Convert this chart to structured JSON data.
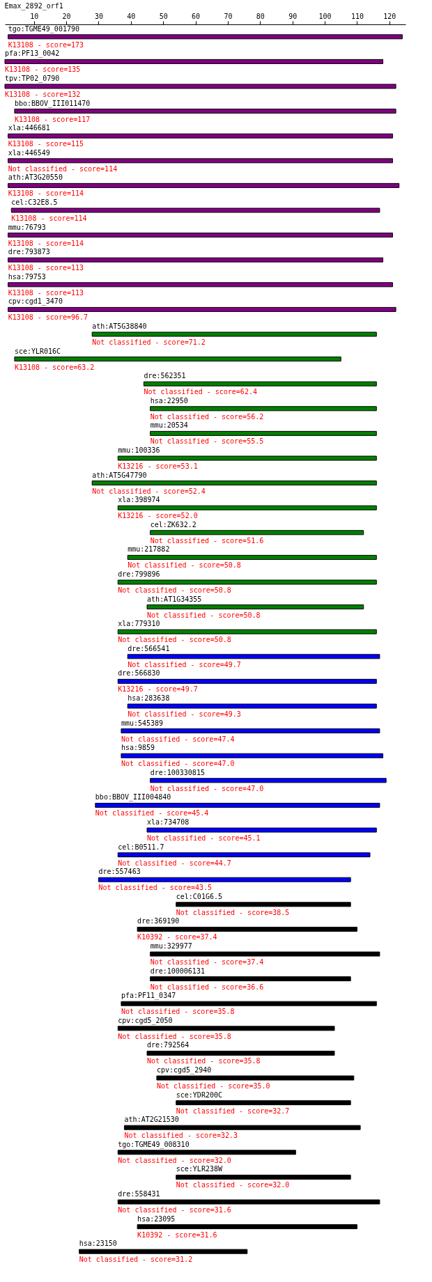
{
  "chart_data": {
    "type": "bar",
    "orientation": "horizontal",
    "title": "Emax_2892_orf1",
    "categories": [
      "tgo:TGME49_001790",
      "pfa:PF13_0042",
      "tpv:TP02_0790",
      "bbo:BBOV_III011470",
      "xla:446681",
      "xla:446549",
      "ath:AT3G20550",
      "cel:C32E8.5",
      "mmu:76793",
      "dre:793873",
      "hsa:79753",
      "cpv:cgd1_3470",
      "ath:AT5G38840",
      "sce:YLR016C",
      "dre:562351",
      "hsa:22950",
      "mmu:20534",
      "mmu:100336",
      "ath:AT5G47790",
      "xla:398974",
      "cel:ZK632.2",
      "mmu:217882",
      "dre:799896",
      "ath:AT1G34355",
      "xla:779310",
      "dre:566541",
      "dre:566830",
      "hsa:283638",
      "mmu:545389",
      "hsa:9859",
      "dre:100330815",
      "bbo:BBOV_III004840",
      "xla:734708",
      "cel:B0511.7",
      "dre:557463",
      "cel:C01G6.5",
      "dre:369190",
      "mmu:329977",
      "dre:100006131",
      "pfa:PF11_0347",
      "cpv:cgd5_2050",
      "dre:792564",
      "cpv:cgd5_2940",
      "sce:YDR200C",
      "ath:AT2G21530",
      "tgo:TGME49_008310",
      "sce:YLR238W",
      "dre:558431",
      "hsa:23095",
      "hsa:23150"
    ],
    "base": [
      2,
      1,
      1,
      4,
      2,
      2,
      2,
      3,
      2,
      2,
      2,
      2,
      28,
      4,
      44,
      46,
      46,
      36,
      28,
      36,
      46,
      39,
      36,
      45,
      36,
      39,
      36,
      39,
      37,
      37,
      46,
      29,
      45,
      36,
      30,
      54,
      42,
      46,
      46,
      37,
      36,
      45,
      48,
      54,
      38,
      36,
      54,
      36,
      42,
      24
    ],
    "values": [
      122,
      117,
      121,
      118,
      119,
      119,
      121,
      114,
      119,
      116,
      119,
      120,
      88,
      101,
      72,
      70,
      70,
      80,
      88,
      80,
      66,
      77,
      80,
      67,
      80,
      78,
      80,
      77,
      80,
      81,
      73,
      88,
      71,
      78,
      78,
      54,
      68,
      71,
      62,
      79,
      67,
      58,
      61,
      54,
      73,
      55,
      54,
      81,
      68,
      52
    ],
    "colors": [
      "#800080",
      "#800080",
      "#800080",
      "#800080",
      "#800080",
      "#800080",
      "#800080",
      "#800080",
      "#800080",
      "#800080",
      "#800080",
      "#800080",
      "#008000",
      "#008000",
      "#008000",
      "#008000",
      "#008000",
      "#008000",
      "#008000",
      "#008000",
      "#008000",
      "#008000",
      "#008000",
      "#008000",
      "#008000",
      "#0000ff",
      "#0000ff",
      "#0000ff",
      "#0000ff",
      "#0000ff",
      "#0000ff",
      "#0000ff",
      "#0000ff",
      "#0000ff",
      "#0000ff",
      "#000000",
      "#000000",
      "#000000",
      "#000000",
      "#000000",
      "#000000",
      "#000000",
      "#000000",
      "#000000",
      "#000000",
      "#000000",
      "#000000",
      "#000000",
      "#000000",
      "#000000"
    ],
    "xlim": [
      1,
      125
    ],
    "xticks": [
      10,
      20,
      30,
      40,
      50,
      60,
      70,
      80,
      90,
      100,
      110,
      120
    ],
    "tick_labels": "x",
    "grid": false,
    "annotations": [
      {
        "text": "K13108 - score=173",
        "x": 2,
        "y": "tgo:TGME49_001790"
      },
      {
        "text": "K13108 - score=135",
        "x": 1,
        "y": "pfa:PF13_0042"
      },
      {
        "text": "K13108 - score=132",
        "x": 1,
        "y": "tpv:TP02_0790"
      },
      {
        "text": "K13108 - score=117",
        "x": 4,
        "y": "bbo:BBOV_III011470"
      },
      {
        "text": "K13108 - score=115",
        "x": 2,
        "y": "xla:446681"
      },
      {
        "text": "Not classified - score=114",
        "x": 2,
        "y": "xla:446549"
      },
      {
        "text": "K13108 - score=114",
        "x": 2,
        "y": "ath:AT3G20550"
      },
      {
        "text": "K13108 - score=114",
        "x": 3,
        "y": "cel:C32E8.5"
      },
      {
        "text": "K13108 - score=114",
        "x": 2,
        "y": "mmu:76793"
      },
      {
        "text": "K13108 - score=113",
        "x": 2,
        "y": "dre:793873"
      },
      {
        "text": "K13108 - score=113",
        "x": 2,
        "y": "hsa:79753"
      },
      {
        "text": "K13108 - score=96.7",
        "x": 2,
        "y": "cpv:cgd1_3470"
      },
      {
        "text": "Not classified - score=71.2",
        "x": 28,
        "y": "ath:AT5G38840"
      },
      {
        "text": "K13108 - score=63.2",
        "x": 4,
        "y": "sce:YLR016C"
      },
      {
        "text": "Not classified - score=62.4",
        "x": 44,
        "y": "dre:562351"
      },
      {
        "text": "Not classified - score=56.2",
        "x": 46,
        "y": "hsa:22950"
      },
      {
        "text": "Not classified - score=55.5",
        "x": 46,
        "y": "mmu:20534"
      },
      {
        "text": "K13216 - score=53.1",
        "x": 36,
        "y": "mmu:100336"
      },
      {
        "text": "Not classified - score=52.4",
        "x": 28,
        "y": "ath:AT5G47790"
      },
      {
        "text": "K13216 - score=52.0",
        "x": 36,
        "y": "xla:398974"
      },
      {
        "text": "Not classified - score=51.6",
        "x": 46,
        "y": "cel:ZK632.2"
      },
      {
        "text": "Not classified - score=50.8",
        "x": 39,
        "y": "mmu:217882"
      },
      {
        "text": "Not classified - score=50.8",
        "x": 36,
        "y": "dre:799896"
      },
      {
        "text": "Not classified - score=50.8",
        "x": 45,
        "y": "ath:AT1G34355"
      },
      {
        "text": "Not classified - score=50.8",
        "x": 36,
        "y": "xla:779310"
      },
      {
        "text": "Not classified - score=49.7",
        "x": 39,
        "y": "dre:566541"
      },
      {
        "text": "K13216 - score=49.7",
        "x": 36,
        "y": "dre:566830"
      },
      {
        "text": "Not classified - score=49.3",
        "x": 39,
        "y": "hsa:283638"
      },
      {
        "text": "Not classified - score=47.4",
        "x": 37,
        "y": "mmu:545389"
      },
      {
        "text": "Not classified - score=47.0",
        "x": 37,
        "y": "hsa:9859"
      },
      {
        "text": "Not classified - score=47.0",
        "x": 46,
        "y": "dre:100330815"
      },
      {
        "text": "Not classified - score=45.4",
        "x": 29,
        "y": "bbo:BBOV_III004840"
      },
      {
        "text": "Not classified - score=45.1",
        "x": 45,
        "y": "xla:734708"
      },
      {
        "text": "Not classified - score=44.7",
        "x": 36,
        "y": "cel:B0511.7"
      },
      {
        "text": "Not classified - score=43.5",
        "x": 30,
        "y": "dre:557463"
      },
      {
        "text": "Not classified - score=38.5",
        "x": 54,
        "y": "cel:C01G6.5"
      },
      {
        "text": "K10392 - score=37.4",
        "x": 42,
        "y": "dre:369190"
      },
      {
        "text": "Not classified - score=37.4",
        "x": 46,
        "y": "mmu:329977"
      },
      {
        "text": "Not classified - score=36.6",
        "x": 46,
        "y": "dre:100006131"
      },
      {
        "text": "Not classified - score=35.8",
        "x": 37,
        "y": "pfa:PF11_0347"
      },
      {
        "text": "Not classified - score=35.8",
        "x": 36,
        "y": "cpv:cgd5_2050"
      },
      {
        "text": "Not classified - score=35.8",
        "x": 45,
        "y": "dre:792564"
      },
      {
        "text": "Not classified - score=35.0",
        "x": 48,
        "y": "cpv:cgd5_2940"
      },
      {
        "text": "Not classified - score=32.7",
        "x": 54,
        "y": "sce:YDR200C"
      },
      {
        "text": "Not classified - score=32.3",
        "x": 38,
        "y": "ath:AT2G21530"
      },
      {
        "text": "Not classified - score=32.0",
        "x": 36,
        "y": "tgo:TGME49_008310"
      },
      {
        "text": "Not classified - score=32.0",
        "x": 54,
        "y": "sce:YLR238W"
      },
      {
        "text": "Not classified - score=31.6",
        "x": 36,
        "y": "dre:558431"
      },
      {
        "text": "K10392 - score=31.6",
        "x": 42,
        "y": "hsa:23095"
      },
      {
        "text": "Not classified - score=31.2",
        "x": 24,
        "y": "hsa:23150"
      }
    ]
  }
}
